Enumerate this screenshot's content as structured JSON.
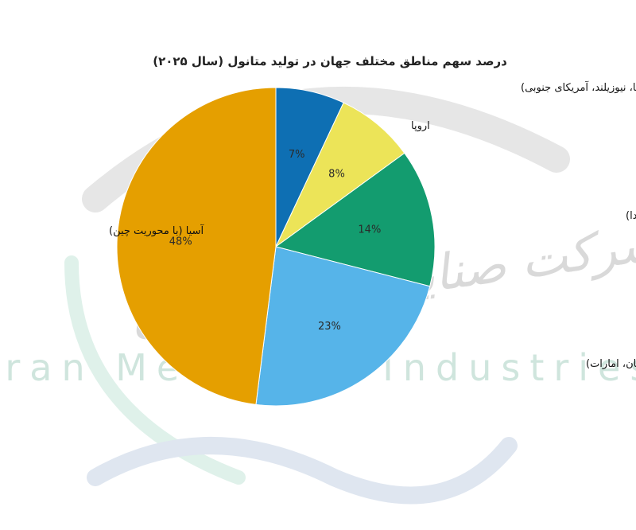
{
  "chart_data": {
    "type": "pie",
    "title": "درصد سهم مناطق مختلف جهان در تولید متانول (سال ۲۰۲۵)",
    "slices": [
      {
        "label": "سایر مناطق (آفریقا، نیوزیلند، آمریکای جنوبی)",
        "value": 7,
        "display": "7%",
        "color": "#0e6fb3"
      },
      {
        "label": "اروپا",
        "value": 8,
        "display": "8%",
        "color": "#ece458"
      },
      {
        "label": "آمریکای شمالی (آمریکا، ترینیداد، کانادا)",
        "value": 14,
        "display": "14%",
        "color": "#139c6f"
      },
      {
        "label": "خاورمیانه (ایران، عربستان، عمان، امارات)",
        "value": 23,
        "display": "23%",
        "color": "#56b4e9"
      },
      {
        "label": "آسیا (با محوریت چین)",
        "value": 48,
        "display": "48%",
        "color": "#e59f00"
      }
    ],
    "legend": "none"
  },
  "watermark": {
    "arabic": "شرکت صنایع متانول ایران",
    "english": "Iran Methanol Industries Co"
  }
}
